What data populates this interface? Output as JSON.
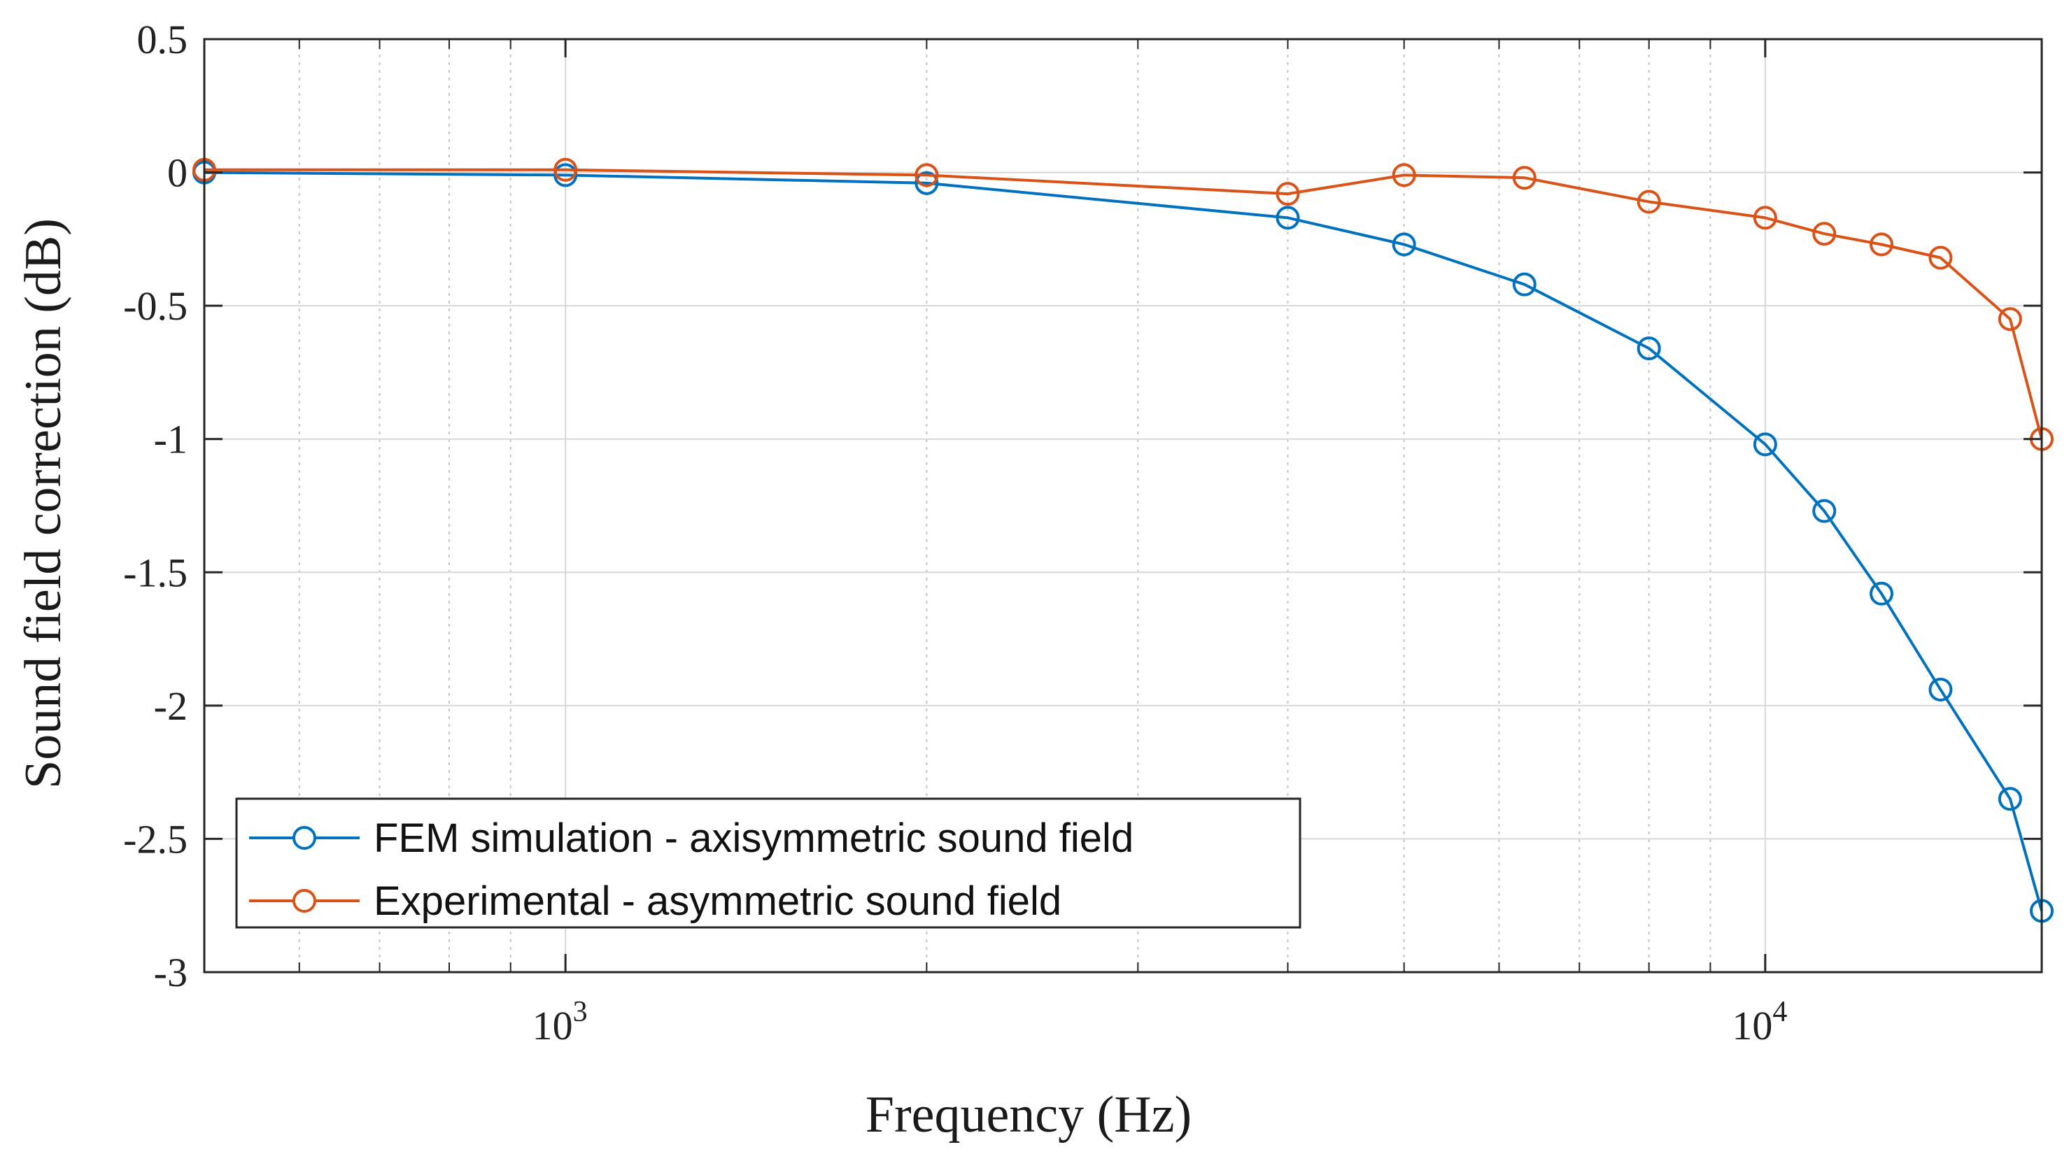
{
  "chart_data": {
    "type": "line",
    "xscale": "log",
    "xlabel": "Frequency (Hz)",
    "ylabel": "Sound field correction (dB)",
    "xlim": [
      500,
      17000
    ],
    "ylim": [
      -3,
      0.5
    ],
    "yticks": [
      "0.5",
      "0",
      "-0.5",
      "-1",
      "-1.5",
      "-2",
      "-2.5",
      "-3"
    ],
    "xticks": [
      {
        "base": "10",
        "exp": "3",
        "value": 1000
      },
      {
        "base": "10",
        "exp": "4",
        "value": 10000
      }
    ],
    "grid": true,
    "legend_position": "bottom-left",
    "series": [
      {
        "name": "FEM simulation - axisymmetric sound field",
        "color": "#0072BD",
        "marker": "circle",
        "x": [
          500,
          1000,
          2000,
          4000,
          5000,
          6300,
          8000,
          10000,
          11200,
          12500,
          14000,
          16000,
          17000
        ],
        "y": [
          0.0,
          -0.01,
          -0.04,
          -0.17,
          -0.27,
          -0.42,
          -0.66,
          -1.02,
          -1.27,
          -1.58,
          -1.94,
          -2.35,
          -2.77
        ]
      },
      {
        "name": "Experimental - asymmetric sound field",
        "color": "#D95319",
        "marker": "circle",
        "x": [
          500,
          1000,
          2000,
          4000,
          5000,
          6300,
          8000,
          10000,
          11200,
          12500,
          14000,
          16000,
          17000
        ],
        "y": [
          0.01,
          0.01,
          -0.01,
          -0.08,
          -0.01,
          -0.02,
          -0.11,
          -0.17,
          -0.23,
          -0.27,
          -0.32,
          -0.55,
          -1.0
        ]
      }
    ]
  }
}
